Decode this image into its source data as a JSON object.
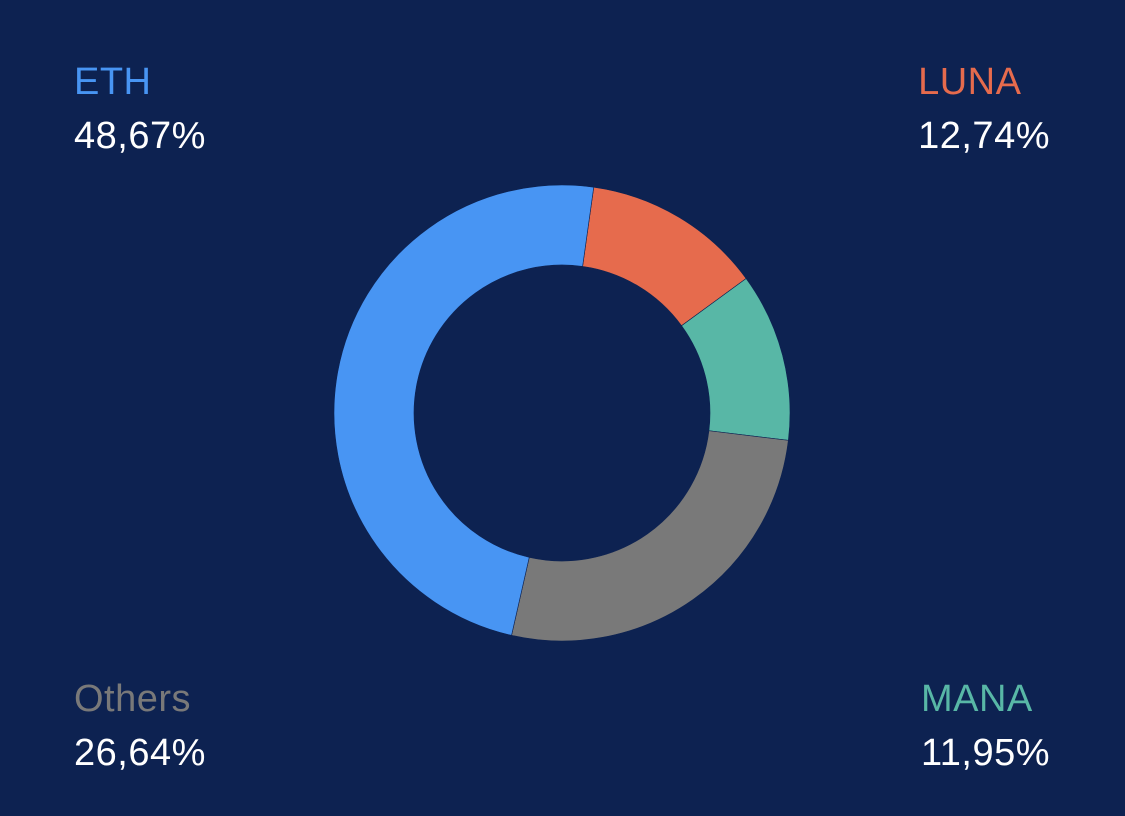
{
  "chart_data": {
    "type": "pie",
    "style": "donut",
    "series": [
      {
        "name": "ETH",
        "value": 48.67,
        "label": "48,67%",
        "color": "#4895f3",
        "position": "top-left"
      },
      {
        "name": "LUNA",
        "value": 12.74,
        "label": "12,74%",
        "color": "#e66b4d",
        "position": "top-right"
      },
      {
        "name": "MANA",
        "value": 11.95,
        "label": "11,95%",
        "color": "#58b7a6",
        "position": "bottom-right"
      },
      {
        "name": "Others",
        "value": 26.64,
        "label": "26,64%",
        "color": "#797979",
        "position": "bottom-left"
      }
    ],
    "slice_order_clockwise_from_eth_end": [
      "LUNA",
      "MANA",
      "Others",
      "ETH"
    ]
  },
  "colors": {
    "background": "#0d2251",
    "value_text": "#ffffff"
  }
}
